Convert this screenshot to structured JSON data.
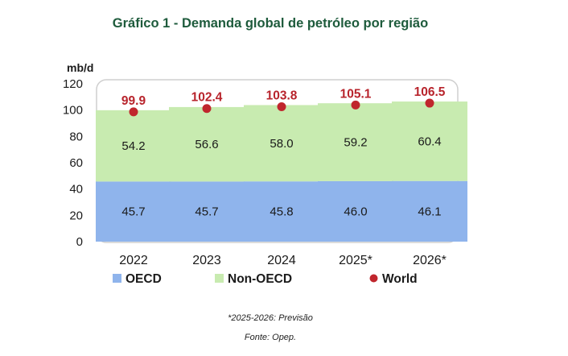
{
  "title": "Gráfico 1 - Demanda global de petróleo por região",
  "footnote": "*2025-2026: Previsão",
  "source": "Fonte: Opep.",
  "colors": {
    "oecd": "#8fb4ec",
    "non_oecd": "#c8ebb0",
    "world": "#c0262d",
    "world_label": "#b8242c",
    "title": "#1e5b3c",
    "plot_border": "#cfcfcf"
  },
  "chart_data": {
    "type": "bar",
    "stacked": true,
    "ylabel": "mb/d",
    "ylim": [
      0,
      120
    ],
    "yticks": [
      "0",
      "20",
      "40",
      "60",
      "80",
      "100",
      "120"
    ],
    "categories": [
      "2022",
      "2023",
      "2024",
      "2025*",
      "2026*"
    ],
    "series": [
      {
        "name": "OECD",
        "values": [
          45.7,
          45.7,
          45.8,
          46.0,
          46.1
        ],
        "labels": [
          "45.7",
          "45.7",
          "45.8",
          "46.0",
          "46.1"
        ]
      },
      {
        "name": "Non-OECD",
        "values": [
          54.2,
          56.6,
          58.0,
          59.2,
          60.4
        ],
        "labels": [
          "54.2",
          "56.6",
          "58.0",
          "59.2",
          "60.4"
        ]
      }
    ],
    "world": {
      "name": "World",
      "values": [
        99.9,
        102.4,
        103.8,
        105.1,
        106.5
      ],
      "labels": [
        "99.9",
        "102.4",
        "103.8",
        "105.1",
        "106.5"
      ]
    },
    "legend": {
      "position": "bottom",
      "items": [
        "OECD",
        "Non-OECD",
        "World"
      ]
    }
  }
}
